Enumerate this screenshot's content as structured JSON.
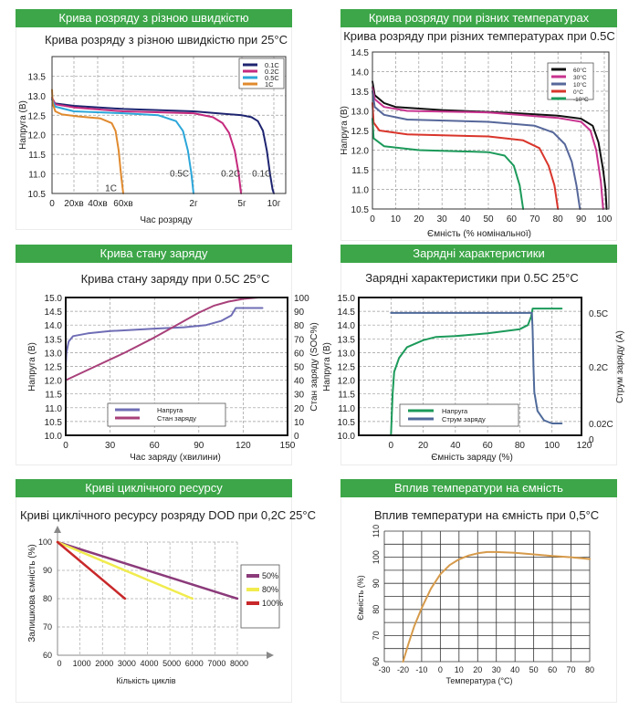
{
  "panels": [
    {
      "header": "Крива розряду з різною швидкістю"
    },
    {
      "header": "Крива розряду при різних температурах"
    },
    {
      "header": "Крива стану заряду"
    },
    {
      "header": "Зарядні характеристики"
    },
    {
      "header": "Криві циклічного ресурсу"
    },
    {
      "header": "Вплив температури на ємність"
    }
  ],
  "chart_data": [
    {
      "type": "line",
      "title": "Крива розряду з різною швидкістю при 25°C",
      "xlabel": "Час розряду",
      "ylabel": "Напруга (В)",
      "x_ticks": [
        {
          "value": 0,
          "label": "0"
        },
        {
          "value": 0.333,
          "label": "20хв"
        },
        {
          "value": 0.667,
          "label": "40хв"
        },
        {
          "value": 1,
          "label": "60хв"
        },
        {
          "value": 2,
          "label": "2г"
        },
        {
          "value": 5,
          "label": "5г"
        },
        {
          "value": 10,
          "label": "10г"
        }
      ],
      "ylim": [
        10.5,
        14.0
      ],
      "y_ticks": [
        "10.5",
        "11.0",
        "11.5",
        "12.0",
        "12.5",
        "13.0",
        "13.5"
      ],
      "grid": "dashed",
      "legend": "top-right",
      "series": [
        {
          "name": "0.1C",
          "color": "#1e2470",
          "points": [
            [
              0,
              12.9
            ],
            [
              0.05,
              12.8
            ],
            [
              0.333,
              12.74
            ],
            [
              1,
              12.66
            ],
            [
              2,
              12.6
            ],
            [
              5,
              12.5
            ],
            [
              6.5,
              12.45
            ],
            [
              7.5,
              12.35
            ],
            [
              8.3,
              12.1
            ],
            [
              8.9,
              11.6
            ],
            [
              9.4,
              11.0
            ],
            [
              9.8,
              10.6
            ],
            [
              10,
              10.5
            ]
          ]
        },
        {
          "name": "0.2C",
          "color": "#c52a7e",
          "points": [
            [
              0,
              12.95
            ],
            [
              0.05,
              12.78
            ],
            [
              0.333,
              12.7
            ],
            [
              1,
              12.6
            ],
            [
              2,
              12.55
            ],
            [
              3.2,
              12.45
            ],
            [
              3.8,
              12.3
            ],
            [
              4.2,
              12.05
            ],
            [
              4.55,
              11.6
            ],
            [
              4.8,
              11.0
            ],
            [
              4.95,
              10.5
            ]
          ]
        },
        {
          "name": "0.5C",
          "color": "#2ba6d9",
          "points": [
            [
              0,
              12.9
            ],
            [
              0.05,
              12.72
            ],
            [
              0.333,
              12.6
            ],
            [
              1,
              12.55
            ],
            [
              1.5,
              12.5
            ],
            [
              1.75,
              12.35
            ],
            [
              1.85,
              12.1
            ],
            [
              1.92,
              11.6
            ],
            [
              1.97,
              11.0
            ],
            [
              2,
              10.5
            ]
          ]
        },
        {
          "name": "1C",
          "color": "#e08a2e",
          "points": [
            [
              0,
              13.15
            ],
            [
              0.01,
              12.8
            ],
            [
              0.05,
              12.6
            ],
            [
              0.15,
              12.52
            ],
            [
              0.4,
              12.47
            ],
            [
              0.7,
              12.42
            ],
            [
              0.85,
              12.3
            ],
            [
              0.9,
              12.1
            ],
            [
              0.94,
              11.6
            ],
            [
              0.97,
              11.0
            ],
            [
              1,
              10.5
            ]
          ]
        }
      ],
      "annotations": [
        {
          "text": "1C",
          "x": 0.84,
          "y": 10.56
        },
        {
          "text": "0.5C",
          "x": 1.8,
          "y": 10.93
        },
        {
          "text": "0.2C",
          "x": 4.3,
          "y": 10.93
        },
        {
          "text": "0.1C",
          "x": 8.1,
          "y": 10.93
        }
      ]
    },
    {
      "type": "line",
      "title": "Крива розряду при різних температурах при 0.5C",
      "xlabel": "Ємність (% номінальної)",
      "ylabel": "Напруга (В)",
      "xlim": [
        0,
        102
      ],
      "x_ticks": [
        "0",
        "10",
        "20",
        "30",
        "40",
        "50",
        "60",
        "70",
        "80",
        "90",
        "100"
      ],
      "ylim": [
        10.5,
        14.5
      ],
      "y_ticks": [
        "10.5",
        "11.0",
        "11.5",
        "12.0",
        "12.5",
        "13.0",
        "13.5",
        "14.0",
        "14.5"
      ],
      "grid": "dashed",
      "legend": "top-right",
      "series": [
        {
          "name": "60°C",
          "color": "#111111",
          "points": [
            [
              0,
              13.75
            ],
            [
              1,
              13.4
            ],
            [
              5,
              13.2
            ],
            [
              10,
              13.1
            ],
            [
              30,
              13.02
            ],
            [
              60,
              12.95
            ],
            [
              80,
              12.88
            ],
            [
              90,
              12.8
            ],
            [
              95,
              12.62
            ],
            [
              97.5,
              12.2
            ],
            [
              99.5,
              11.5
            ],
            [
              100.5,
              11.0
            ],
            [
              101,
              10.5
            ]
          ]
        },
        {
          "name": "30°C",
          "color": "#c8338f",
          "points": [
            [
              0,
              13.6
            ],
            [
              1,
              13.3
            ],
            [
              5,
              13.1
            ],
            [
              15,
              13.0
            ],
            [
              50,
              12.96
            ],
            [
              80,
              12.82
            ],
            [
              90,
              12.72
            ],
            [
              94,
              12.5
            ],
            [
              96.5,
              12.0
            ],
            [
              98.5,
              11.2
            ],
            [
              99.5,
              10.5
            ]
          ]
        },
        {
          "name": "10°C",
          "color": "#56679a",
          "points": [
            [
              0,
              13.5
            ],
            [
              1,
              13.1
            ],
            [
              5,
              12.9
            ],
            [
              15,
              12.78
            ],
            [
              50,
              12.72
            ],
            [
              70,
              12.62
            ],
            [
              78,
              12.45
            ],
            [
              83,
              12.15
            ],
            [
              86,
              11.7
            ],
            [
              88,
              11.1
            ],
            [
              89.5,
              10.5
            ]
          ]
        },
        {
          "name": "0°C",
          "color": "#d9352b",
          "points": [
            [
              0,
              13.2
            ],
            [
              0.5,
              12.7
            ],
            [
              3,
              12.5
            ],
            [
              15,
              12.4
            ],
            [
              50,
              12.35
            ],
            [
              65,
              12.25
            ],
            [
              72,
              12.05
            ],
            [
              76,
              11.6
            ],
            [
              78.5,
              11.1
            ],
            [
              80,
              10.5
            ]
          ]
        },
        {
          "name": "-10°C",
          "color": "#1c9a5a",
          "points": [
            [
              0,
              12.8
            ],
            [
              0.5,
              12.3
            ],
            [
              5,
              12.1
            ],
            [
              20,
              12.0
            ],
            [
              50,
              11.95
            ],
            [
              57,
              11.86
            ],
            [
              61,
              11.6
            ],
            [
              63.5,
              11.1
            ],
            [
              65,
              10.5
            ]
          ]
        }
      ]
    },
    {
      "type": "line",
      "title": "Крива стану заряду при 0.5C 25°C",
      "xlabel": "Час заряду (хвилини)",
      "ylabel": "Напруга (В)",
      "ylabel_right": "Стан заряду (SOC%)",
      "xlim": [
        0,
        150
      ],
      "x_ticks": [
        "0",
        "30",
        "60",
        "90",
        "120",
        "150"
      ],
      "ylim": [
        10.0,
        15.0
      ],
      "y_ticks": [
        "10.0",
        "10.5",
        "11.0",
        "11.5",
        "12.0",
        "12.5",
        "13.0",
        "13.5",
        "14.0",
        "14.5",
        "15.0"
      ],
      "ylim_right": [
        0,
        100
      ],
      "y_ticks_right": [
        "0",
        "10",
        "20",
        "30",
        "40",
        "50",
        "60",
        "70",
        "80",
        "90",
        "100"
      ],
      "grid": "dashed",
      "legend": "bottom-center",
      "series": [
        {
          "name": "Напруга",
          "axis": "left",
          "color": "#6f6db5",
          "points": [
            [
              0,
              12.5
            ],
            [
              0.5,
              13.0
            ],
            [
              2,
              13.4
            ],
            [
              5,
              13.6
            ],
            [
              15,
              13.7
            ],
            [
              30,
              13.78
            ],
            [
              60,
              13.87
            ],
            [
              80,
              13.92
            ],
            [
              95,
              14.0
            ],
            [
              105,
              14.15
            ],
            [
              112,
              14.35
            ],
            [
              115,
              14.62
            ],
            [
              133,
              14.62
            ]
          ]
        },
        {
          "name": "Стан заряду",
          "axis": "right",
          "color": "#a8407a",
          "points": [
            [
              0,
              40
            ],
            [
              20,
              50
            ],
            [
              40,
              60
            ],
            [
              60,
              71
            ],
            [
              75,
              80
            ],
            [
              90,
              89
            ],
            [
              100,
              94
            ],
            [
              110,
              97
            ],
            [
              120,
              99
            ],
            [
              130,
              100
            ],
            [
              133,
              100
            ]
          ]
        }
      ]
    },
    {
      "type": "line",
      "title": "Зарядні характеристики при 0.5C 25°C",
      "xlabel": "Ємність заряду (%)",
      "ylabel": "Напруга (В)",
      "ylabel_right": "Струм заряду (А)",
      "x_ticks": [
        "0",
        "20",
        "40",
        "60",
        "80",
        "100",
        "120"
      ],
      "ylim": [
        10.0,
        15.0
      ],
      "y_ticks": [
        "10.0",
        "10.5",
        "11.0",
        "11.5",
        "12.0",
        "12.5",
        "13.0",
        "13.5",
        "14.0",
        "14.5",
        "15.0"
      ],
      "y_ticks_right": [
        {
          "value": 0,
          "label": "0"
        },
        {
          "value": 0.02,
          "label": "0.02C"
        },
        {
          "value": 0.2,
          "label": "0.2C"
        },
        {
          "value": 0.5,
          "label": "0.5C"
        }
      ],
      "grid": "dashed",
      "legend": "bottom-center",
      "series": [
        {
          "name": "Напруга",
          "axis": "left",
          "color": "#1c9a5a",
          "points": [
            [
              0,
              10.0
            ],
            [
              1,
              11.5
            ],
            [
              2,
              12.3
            ],
            [
              5,
              12.8
            ],
            [
              10,
              13.2
            ],
            [
              20,
              13.45
            ],
            [
              28,
              13.57
            ],
            [
              40,
              13.6
            ],
            [
              60,
              13.7
            ],
            [
              80,
              13.85
            ],
            [
              85,
              14.0
            ],
            [
              87,
              14.3
            ],
            [
              88,
              14.6
            ],
            [
              106,
              14.6
            ]
          ]
        },
        {
          "name": "Струм заряду",
          "axis": "right",
          "color": "#4f6a9a",
          "points": [
            [
              0,
              0.5
            ],
            [
              87.5,
              0.5
            ],
            [
              88,
              0.4
            ],
            [
              88.5,
              0.2
            ],
            [
              89,
              0.12
            ],
            [
              91,
              0.06
            ],
            [
              95,
              0.03
            ],
            [
              100,
              0.02
            ],
            [
              106,
              0.02
            ]
          ]
        }
      ]
    },
    {
      "type": "line",
      "title": "Криві циклічного ресурсу розряду DOD при 0,2C 25°C",
      "xlabel": "Кількість циклів",
      "ylabel": "Залишкова ємність (%)",
      "x_ticks": [
        "0",
        "1000",
        "2000",
        "3000",
        "4000",
        "5000",
        "6000",
        "7000",
        "8000"
      ],
      "ylim": [
        60,
        100
      ],
      "y_ticks": [
        "60",
        "70",
        "80",
        "90",
        "100"
      ],
      "grid": "dashed",
      "legend": "right",
      "series": [
        {
          "name": "50%",
          "color": "#8b3a7a",
          "points": [
            [
              0,
              100
            ],
            [
              8000,
              80
            ]
          ]
        },
        {
          "name": "80%",
          "color": "#f1ec4e",
          "points": [
            [
              0,
              100
            ],
            [
              6000,
              80
            ]
          ]
        },
        {
          "name": "100%",
          "color": "#c8282a",
          "points": [
            [
              0,
              100
            ],
            [
              3000,
              80
            ]
          ]
        }
      ]
    },
    {
      "type": "line",
      "title": "Вплив температури на ємність при 0,5°C",
      "xlabel": "Температура (°C)",
      "ylabel": "Ємність (%)",
      "xlim": [
        -30,
        80
      ],
      "x_ticks": [
        "-30",
        "-20",
        "-10",
        "0",
        "10",
        "20",
        "30",
        "40",
        "50",
        "60",
        "70",
        "80"
      ],
      "ylim": [
        60,
        110
      ],
      "y_ticks": [
        "60",
        "70",
        "80",
        "90",
        "100",
        "110"
      ],
      "grid": "solid",
      "series": [
        {
          "color": "#d69a4a",
          "points": [
            [
              -20,
              60
            ],
            [
              -17,
              67
            ],
            [
              -14,
              73.5
            ],
            [
              -10,
              80.5
            ],
            [
              -5,
              88
            ],
            [
              0,
              93.5
            ],
            [
              5,
              97
            ],
            [
              10,
              99.2
            ],
            [
              15,
              100.6
            ],
            [
              20,
              101.5
            ],
            [
              25,
              102
            ],
            [
              30,
              102
            ],
            [
              40,
              101.7
            ],
            [
              50,
              101.1
            ],
            [
              60,
              100.5
            ],
            [
              70,
              100
            ],
            [
              80,
              99.3
            ]
          ]
        }
      ]
    }
  ]
}
